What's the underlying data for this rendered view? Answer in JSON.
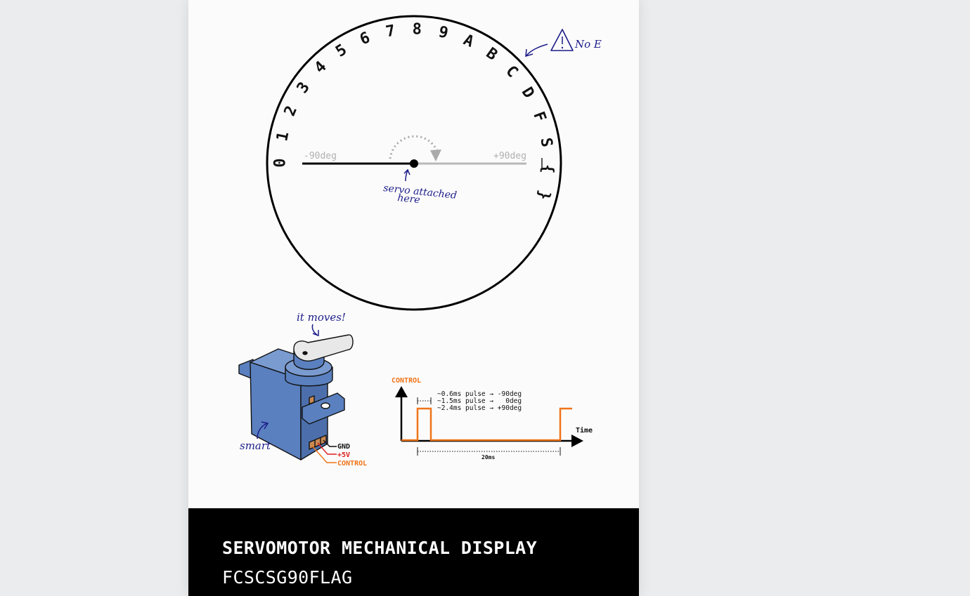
{
  "dial": {
    "characters": [
      "0",
      "1",
      "2",
      "3",
      "4",
      "5",
      "6",
      "7",
      "8",
      "9",
      "A",
      "B",
      "C",
      "D",
      "F",
      "S",
      "{",
      "}"
    ],
    "label_minus": "-90deg",
    "label_plus": "+90deg"
  },
  "annotations": {
    "no_e": "No E",
    "servo_attached_line1": "servo attached",
    "servo_attached_line2": "here",
    "it_moves": "it moves!",
    "smart": "smart"
  },
  "servo": {
    "wire_gnd": "GND",
    "wire_5v": "+5V",
    "wire_control": "CONTROL"
  },
  "timing": {
    "label_control": "CONTROL",
    "pulse_1": "~0.6ms pulse → -90deg",
    "pulse_2": "~1.5ms pulse →   0deg",
    "pulse_3": "~2.4ms pulse → +90deg",
    "axis_time": "Time",
    "period": "20ms"
  },
  "caption": {
    "title": "SERVOMOTOR MECHANICAL DISPLAY",
    "code": "FCSCSG90FLAG"
  },
  "colors": {
    "control_wire": "#f07418",
    "power_wire": "#e02020",
    "servo_body": "#5a80bf",
    "ink_blue": "#1c1c8a",
    "caption_bg": "#000000"
  }
}
